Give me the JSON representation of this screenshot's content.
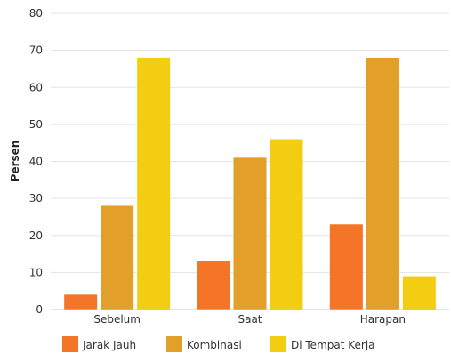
{
  "chart_data": {
    "type": "bar",
    "title": "",
    "xlabel": "",
    "ylabel": "Persen",
    "ylim": [
      0,
      80
    ],
    "yticks": [
      0,
      10,
      20,
      30,
      40,
      50,
      60,
      70,
      80
    ],
    "grid": true,
    "legend_position": "bottom",
    "categories": [
      "Sebelum",
      "Saat",
      "Harapan"
    ],
    "series": [
      {
        "name": "Jarak Jauh",
        "color": "#F47428",
        "values": [
          4,
          13,
          23
        ]
      },
      {
        "name": "Kombinasi",
        "color": "#E2A02A",
        "values": [
          28,
          41,
          68
        ]
      },
      {
        "name": "Di Tempat Kerja",
        "color": "#F2CD12",
        "values": [
          68,
          46,
          9
        ]
      }
    ]
  }
}
